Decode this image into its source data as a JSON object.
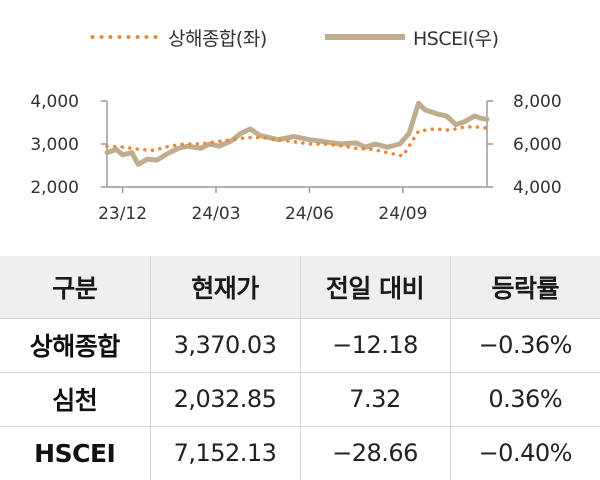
{
  "colors": {
    "shanghai": "#e8883a",
    "hscei": "#bfae8e",
    "header_bg": "#efefef"
  },
  "legend": {
    "shanghai": "상해종합(좌)",
    "hscei": "HSCEI(우)"
  },
  "chart_data": {
    "type": "line",
    "x_ticks": [
      "23/12",
      "24/03",
      "24/06",
      "24/09"
    ],
    "y_left": {
      "ticks": [
        "2,000",
        "3,000",
        "4,000"
      ],
      "range": [
        2000,
        4000
      ]
    },
    "y_right": {
      "ticks": [
        "4,000",
        "6,000",
        "8,000"
      ],
      "range": [
        4000,
        8000
      ]
    },
    "x_range": [
      0,
      12.2
    ],
    "series": [
      {
        "name": "상해종합(좌)",
        "axis": "left",
        "style": "dotted",
        "x": [
          0,
          0.5,
          1,
          1.5,
          2,
          2.5,
          3,
          3.5,
          4,
          4.5,
          5,
          5.5,
          6,
          6.5,
          7,
          7.5,
          8,
          8.5,
          9,
          9.5,
          10,
          10.5,
          11,
          11.5,
          12,
          12.2
        ],
        "values": [
          2950,
          2930,
          2880,
          2850,
          2950,
          3000,
          3000,
          3050,
          3100,
          3150,
          3150,
          3100,
          3050,
          3000,
          3000,
          2960,
          2900,
          2880,
          2800,
          2720,
          3300,
          3350,
          3320,
          3400,
          3390,
          3370
        ]
      },
      {
        "name": "HSCEI(우)",
        "axis": "right",
        "style": "solid",
        "x": [
          0,
          0.3,
          0.5,
          0.8,
          1,
          1.3,
          1.6,
          2,
          2.3,
          2.6,
          3,
          3.3,
          3.6,
          4,
          4.3,
          4.6,
          4.9,
          5.2,
          5.5,
          6,
          6.5,
          7,
          7.5,
          8,
          8.3,
          8.6,
          9,
          9.4,
          9.7,
          10,
          10.2,
          10.4,
          10.6,
          10.9,
          11.2,
          11.5,
          11.8,
          12,
          12.2
        ],
        "values": [
          5600,
          5750,
          5500,
          5600,
          5050,
          5300,
          5250,
          5600,
          5800,
          5900,
          5800,
          6000,
          5900,
          6150,
          6500,
          6700,
          6400,
          6300,
          6200,
          6350,
          6200,
          6100,
          6000,
          6050,
          5850,
          6000,
          5850,
          6000,
          6500,
          7900,
          7600,
          7500,
          7400,
          7300,
          6900,
          7050,
          7300,
          7200,
          7150
        ]
      }
    ]
  },
  "table": {
    "headers": [
      "구분",
      "현재가",
      "전일 대비",
      "등락률"
    ],
    "rows": [
      {
        "name": "상해종합",
        "price": "3,370.03",
        "change": "−12.18",
        "rate": "−0.36%"
      },
      {
        "name": "심천",
        "price": "2,032.85",
        "change": "7.32",
        "rate": "0.36%"
      },
      {
        "name": "HSCEI",
        "price": "7,152.13",
        "change": "−28.66",
        "rate": "−0.40%"
      }
    ]
  }
}
